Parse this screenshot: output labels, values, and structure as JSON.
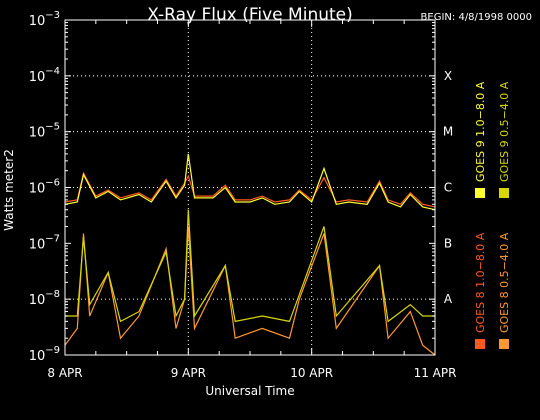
{
  "chart_data": {
    "type": "line",
    "title": "X-Ray Flux (Five Minute)",
    "begin_label": "BEGIN: 4/8/1998 0000",
    "xlabel": "Universal Time",
    "ylabel": "Watts meter2",
    "x_ticks": [
      "8 APR",
      "9 APR",
      "10 APR",
      "11 APR"
    ],
    "x_range_days": [
      0,
      3
    ],
    "y_scale": "log",
    "ylim": [
      1e-09,
      0.001
    ],
    "y_tick_bases": [
      "10",
      "10",
      "10",
      "10",
      "10",
      "10",
      "10"
    ],
    "y_tick_exponents": [
      "−9",
      "−8",
      "−7",
      "−6",
      "−5",
      "−4",
      "−3"
    ],
    "y_tick_values": [
      1e-09,
      1e-08,
      1e-07,
      1e-06,
      1e-05,
      0.0001,
      0.001
    ],
    "flare_classes": [
      {
        "label": "A",
        "value": 1e-08
      },
      {
        "label": "B",
        "value": 1e-07
      },
      {
        "label": "C",
        "value": 1e-06
      },
      {
        "label": "M",
        "value": 1e-05
      },
      {
        "label": "X",
        "value": 0.0001
      }
    ],
    "grid": {
      "horizontal_dotted": [
        1e-08,
        1e-06,
        1e-05,
        0.0001
      ],
      "vertical_dotted": [
        "9 APR",
        "10 APR"
      ]
    },
    "legend_placement": "right, rotated",
    "series": [
      {
        "name": "GOES 8 1.0−8.0 A",
        "color": "#ff5a1e",
        "points": [
          [
            0.0,
            5.5e-07
          ],
          [
            0.1,
            6e-07
          ],
          [
            0.15,
            1.8e-06
          ],
          [
            0.25,
            7e-07
          ],
          [
            0.35,
            9e-07
          ],
          [
            0.45,
            6.5e-07
          ],
          [
            0.6,
            8e-07
          ],
          [
            0.7,
            6e-07
          ],
          [
            0.82,
            1.4e-06
          ],
          [
            0.9,
            7e-07
          ],
          [
            0.97,
            1.2e-06
          ],
          [
            1.0,
            1.6e-06
          ],
          [
            1.05,
            7e-07
          ],
          [
            1.2,
            7e-07
          ],
          [
            1.3,
            1.1e-06
          ],
          [
            1.38,
            6e-07
          ],
          [
            1.5,
            6e-07
          ],
          [
            1.6,
            7e-07
          ],
          [
            1.7,
            5.5e-07
          ],
          [
            1.82,
            6e-07
          ],
          [
            1.9,
            9e-07
          ],
          [
            2.0,
            6e-07
          ],
          [
            2.1,
            1.5e-06
          ],
          [
            2.2,
            5.5e-07
          ],
          [
            2.3,
            6e-07
          ],
          [
            2.45,
            5.5e-07
          ],
          [
            2.55,
            1.3e-06
          ],
          [
            2.62,
            6e-07
          ],
          [
            2.72,
            5e-07
          ],
          [
            2.8,
            8e-07
          ],
          [
            2.9,
            5e-07
          ],
          [
            3.0,
            4.5e-07
          ]
        ]
      },
      {
        "name": "GOES 8 0.5−4.0 A",
        "color": "#ff9830",
        "points": [
          [
            0.0,
            1.5e-09
          ],
          [
            0.1,
            3e-09
          ],
          [
            0.15,
            1.5e-07
          ],
          [
            0.2,
            5e-09
          ],
          [
            0.35,
            3e-08
          ],
          [
            0.45,
            2e-09
          ],
          [
            0.6,
            5e-09
          ],
          [
            0.82,
            8e-08
          ],
          [
            0.9,
            3e-09
          ],
          [
            0.97,
            1e-08
          ],
          [
            1.0,
            2e-07
          ],
          [
            1.05,
            3e-09
          ],
          [
            1.3,
            4e-08
          ],
          [
            1.38,
            2e-09
          ],
          [
            1.6,
            3e-09
          ],
          [
            1.82,
            2e-09
          ],
          [
            1.9,
            1e-08
          ],
          [
            2.1,
            1.5e-07
          ],
          [
            2.2,
            3e-09
          ],
          [
            2.55,
            4e-08
          ],
          [
            2.62,
            2e-09
          ],
          [
            2.8,
            6e-09
          ],
          [
            2.9,
            1.5e-09
          ],
          [
            3.0,
            1e-09
          ]
        ]
      },
      {
        "name": "GOES 9 1.0−8.0 A",
        "color": "#ffff30",
        "points": [
          [
            0.0,
            5e-07
          ],
          [
            0.1,
            5.5e-07
          ],
          [
            0.15,
            1.7e-06
          ],
          [
            0.25,
            6.5e-07
          ],
          [
            0.35,
            8.5e-07
          ],
          [
            0.45,
            6e-07
          ],
          [
            0.6,
            7.5e-07
          ],
          [
            0.7,
            5.5e-07
          ],
          [
            0.82,
            1.3e-06
          ],
          [
            0.9,
            6.5e-07
          ],
          [
            0.97,
            1.1e-06
          ],
          [
            1.0,
            4e-06
          ],
          [
            1.05,
            6.5e-07
          ],
          [
            1.2,
            6.5e-07
          ],
          [
            1.3,
            1e-06
          ],
          [
            1.38,
            5.5e-07
          ],
          [
            1.5,
            5.5e-07
          ],
          [
            1.6,
            6.5e-07
          ],
          [
            1.7,
            5e-07
          ],
          [
            1.82,
            5.5e-07
          ],
          [
            1.9,
            8.5e-07
          ],
          [
            2.0,
            5.5e-07
          ],
          [
            2.1,
            2.2e-06
          ],
          [
            2.2,
            5e-07
          ],
          [
            2.3,
            5.5e-07
          ],
          [
            2.45,
            5e-07
          ],
          [
            2.55,
            1.2e-06
          ],
          [
            2.62,
            5.5e-07
          ],
          [
            2.72,
            4.5e-07
          ],
          [
            2.8,
            7.5e-07
          ],
          [
            2.9,
            4.5e-07
          ],
          [
            3.0,
            4e-07
          ]
        ]
      },
      {
        "name": "GOES 9 0.5−4.0 A",
        "color": "#d6d600",
        "points": [
          [
            0.0,
            5e-09
          ],
          [
            0.1,
            5e-09
          ],
          [
            0.15,
            1.3e-07
          ],
          [
            0.2,
            8e-09
          ],
          [
            0.35,
            3e-08
          ],
          [
            0.45,
            4e-09
          ],
          [
            0.6,
            6e-09
          ],
          [
            0.82,
            7e-08
          ],
          [
            0.9,
            5e-09
          ],
          [
            0.97,
            1e-08
          ],
          [
            1.0,
            4e-07
          ],
          [
            1.05,
            5e-09
          ],
          [
            1.3,
            4e-08
          ],
          [
            1.38,
            4e-09
          ],
          [
            1.6,
            5e-09
          ],
          [
            1.82,
            4e-09
          ],
          [
            1.9,
            1.2e-08
          ],
          [
            2.1,
            2e-07
          ],
          [
            2.2,
            5e-09
          ],
          [
            2.55,
            4e-08
          ],
          [
            2.62,
            4e-09
          ],
          [
            2.8,
            8e-09
          ],
          [
            2.9,
            5e-09
          ],
          [
            3.0,
            5e-09
          ]
        ]
      }
    ]
  }
}
